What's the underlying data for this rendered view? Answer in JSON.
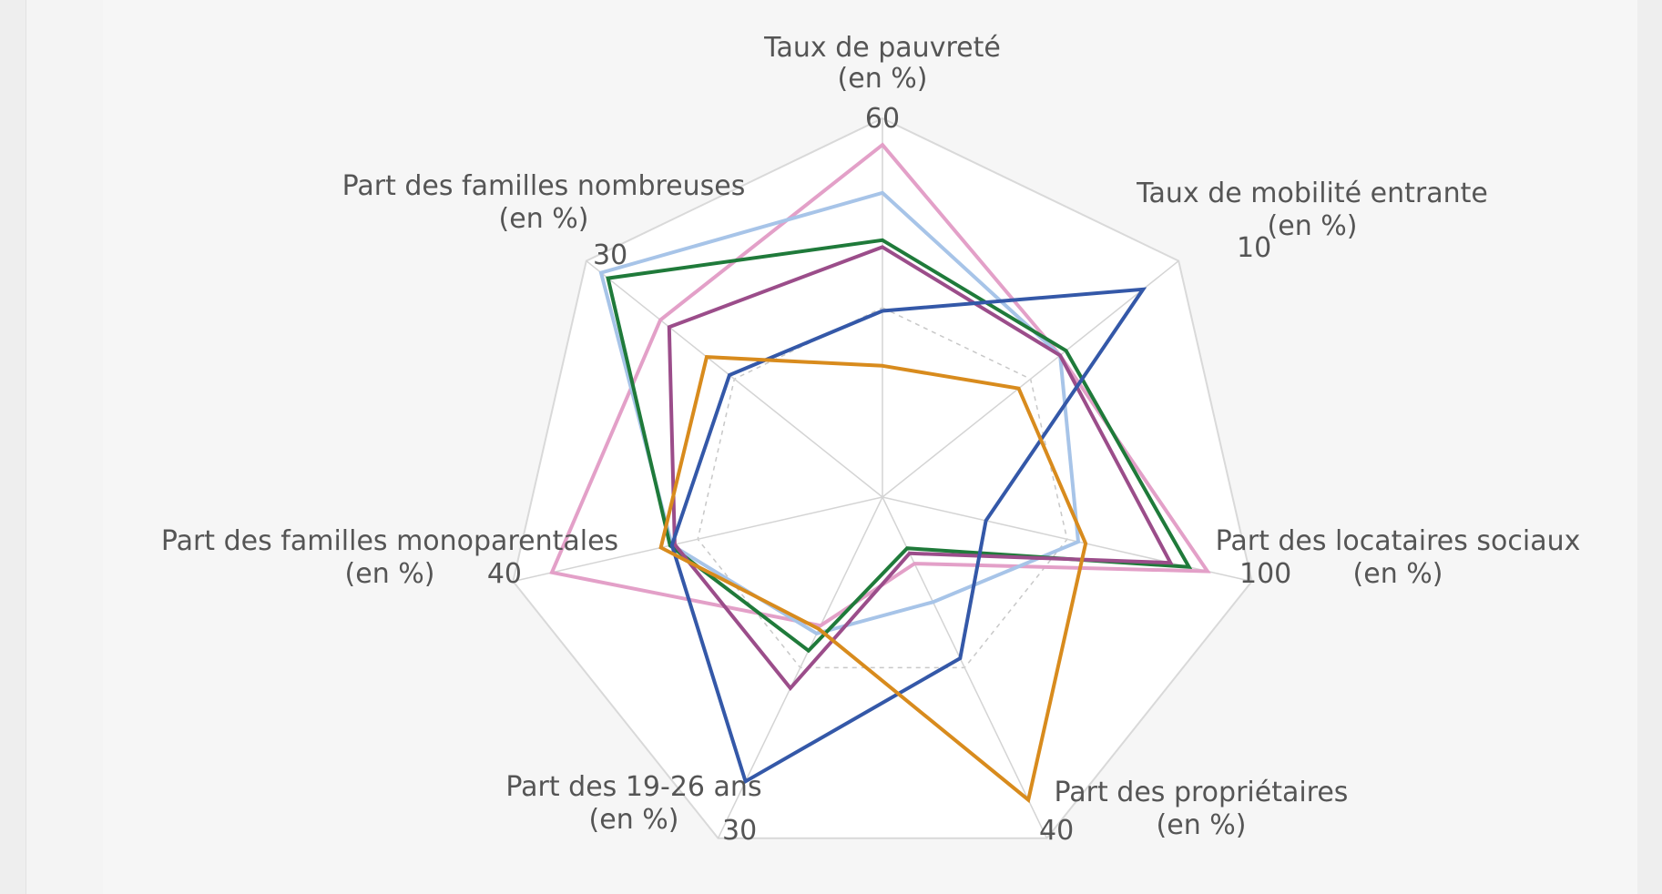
{
  "chart_data": {
    "type": "radar",
    "axes": [
      {
        "label": [
          "Taux de pauvreté",
          "(en %)"
        ],
        "max": 60,
        "max_label": "60"
      },
      {
        "label": [
          "Taux de mobilité entrante",
          "(en %)"
        ],
        "max": 10,
        "max_label": "10"
      },
      {
        "label": [
          "Part des locataires sociaux",
          "(en %)"
        ],
        "max": 100,
        "max_label": "100"
      },
      {
        "label": [
          "Part des propriétaires",
          "(en %)"
        ],
        "max": 40,
        "max_label": "40"
      },
      {
        "label": [
          "Part des 19-26 ans",
          "(en %)"
        ],
        "max": 30,
        "max_label": "30"
      },
      {
        "label": [
          "Part des familles monoparentales",
          "(en %)"
        ],
        "max": 40,
        "max_label": "40"
      },
      {
        "label": [
          "Part des familles nombreuses",
          "(en %)"
        ],
        "max": 30,
        "max_label": "30"
      }
    ],
    "grid_levels": 2,
    "legend": "none",
    "series": [
      {
        "color": "#e3a0c8",
        "values": [
          55.8,
          6.0,
          88,
          7.8,
          11.3,
          35.8,
          22.5
        ]
      },
      {
        "color": "#a7c4e8",
        "values": [
          48.2,
          6.0,
          53,
          12.3,
          12.0,
          22.8,
          28.5
        ]
      },
      {
        "color": "#1f7a3a",
        "values": [
          40.7,
          6.2,
          83,
          6.0,
          13.5,
          23.0,
          27.8
        ]
      },
      {
        "color": "#9b4d8a",
        "values": [
          39.6,
          6.0,
          78,
          6.6,
          16.8,
          22.5,
          21.6
        ]
      },
      {
        "color": "#3458a8",
        "values": [
          29.5,
          8.8,
          28,
          18.9,
          25.0,
          22.8,
          15.5
        ]
      },
      {
        "color": "#d88b1d",
        "values": [
          20.8,
          4.6,
          55,
          35.5,
          11.6,
          24.0,
          17.8
        ]
      }
    ]
  }
}
